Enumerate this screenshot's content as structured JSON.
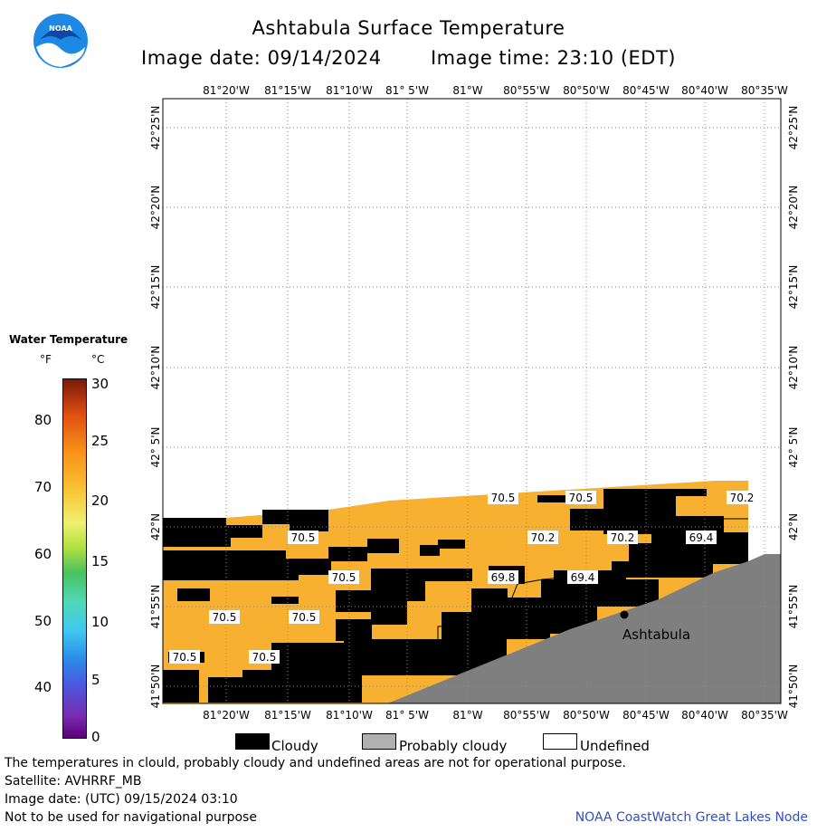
{
  "header": {
    "title": "Ashtabula Surface Temperature",
    "image_date": "Image date: 09/14/2024",
    "image_time": "Image time: 23:10 (EDT)"
  },
  "colorbar": {
    "title": "Water Temperature",
    "unit_f": "°F",
    "unit_c": "°C",
    "f_ticks": [
      "40",
      "50",
      "60",
      "70",
      "80"
    ],
    "c_ticks": [
      "0",
      "5",
      "10",
      "15",
      "20",
      "25",
      "30"
    ]
  },
  "map": {
    "lon_labels": [
      "81°20'W",
      "81°15'W",
      "81°10'W",
      "81° 5'W",
      "81°W",
      "80°55'W",
      "80°50'W",
      "80°45'W",
      "80°40'W",
      "80°35'W"
    ],
    "lat_labels": [
      "42°25'N",
      "42°20'N",
      "42°15'N",
      "42°10'N",
      "42° 5'N",
      "42°N",
      "41°55'N",
      "41°50'N"
    ],
    "city_label": "Ashtabula",
    "colors": {
      "water": "#f8b030",
      "cloud": "#000000",
      "land": "#7f7f7f",
      "grid": "#888888"
    },
    "temps": [
      {
        "label": "70.5"
      },
      {
        "label": "70.5"
      },
      {
        "label": "70.2"
      },
      {
        "label": "70.5"
      },
      {
        "label": "70.2"
      },
      {
        "label": "70.2"
      },
      {
        "label": "69.4"
      },
      {
        "label": "70.5"
      },
      {
        "label": "69.8"
      },
      {
        "label": "69.4"
      },
      {
        "label": "70.5"
      },
      {
        "label": "70.5"
      },
      {
        "label": "70.5"
      },
      {
        "label": "70.5"
      }
    ]
  },
  "legend": {
    "cloudy": "Cloudy",
    "probably_cloudy": "Probably cloudy",
    "undefined": "Undefined"
  },
  "footer": {
    "disclaimer": "The temperatures in clould, probably cloudy and undefined areas are not for operational purpose.",
    "satellite": "Satellite: AVHRRF_MB",
    "utc_date": "Image date: (UTC) 09/15/2024  03:10",
    "nav_warning": "Not to be used for navigational purpose",
    "credit": "NOAA CoastWatch Great Lakes Node"
  }
}
